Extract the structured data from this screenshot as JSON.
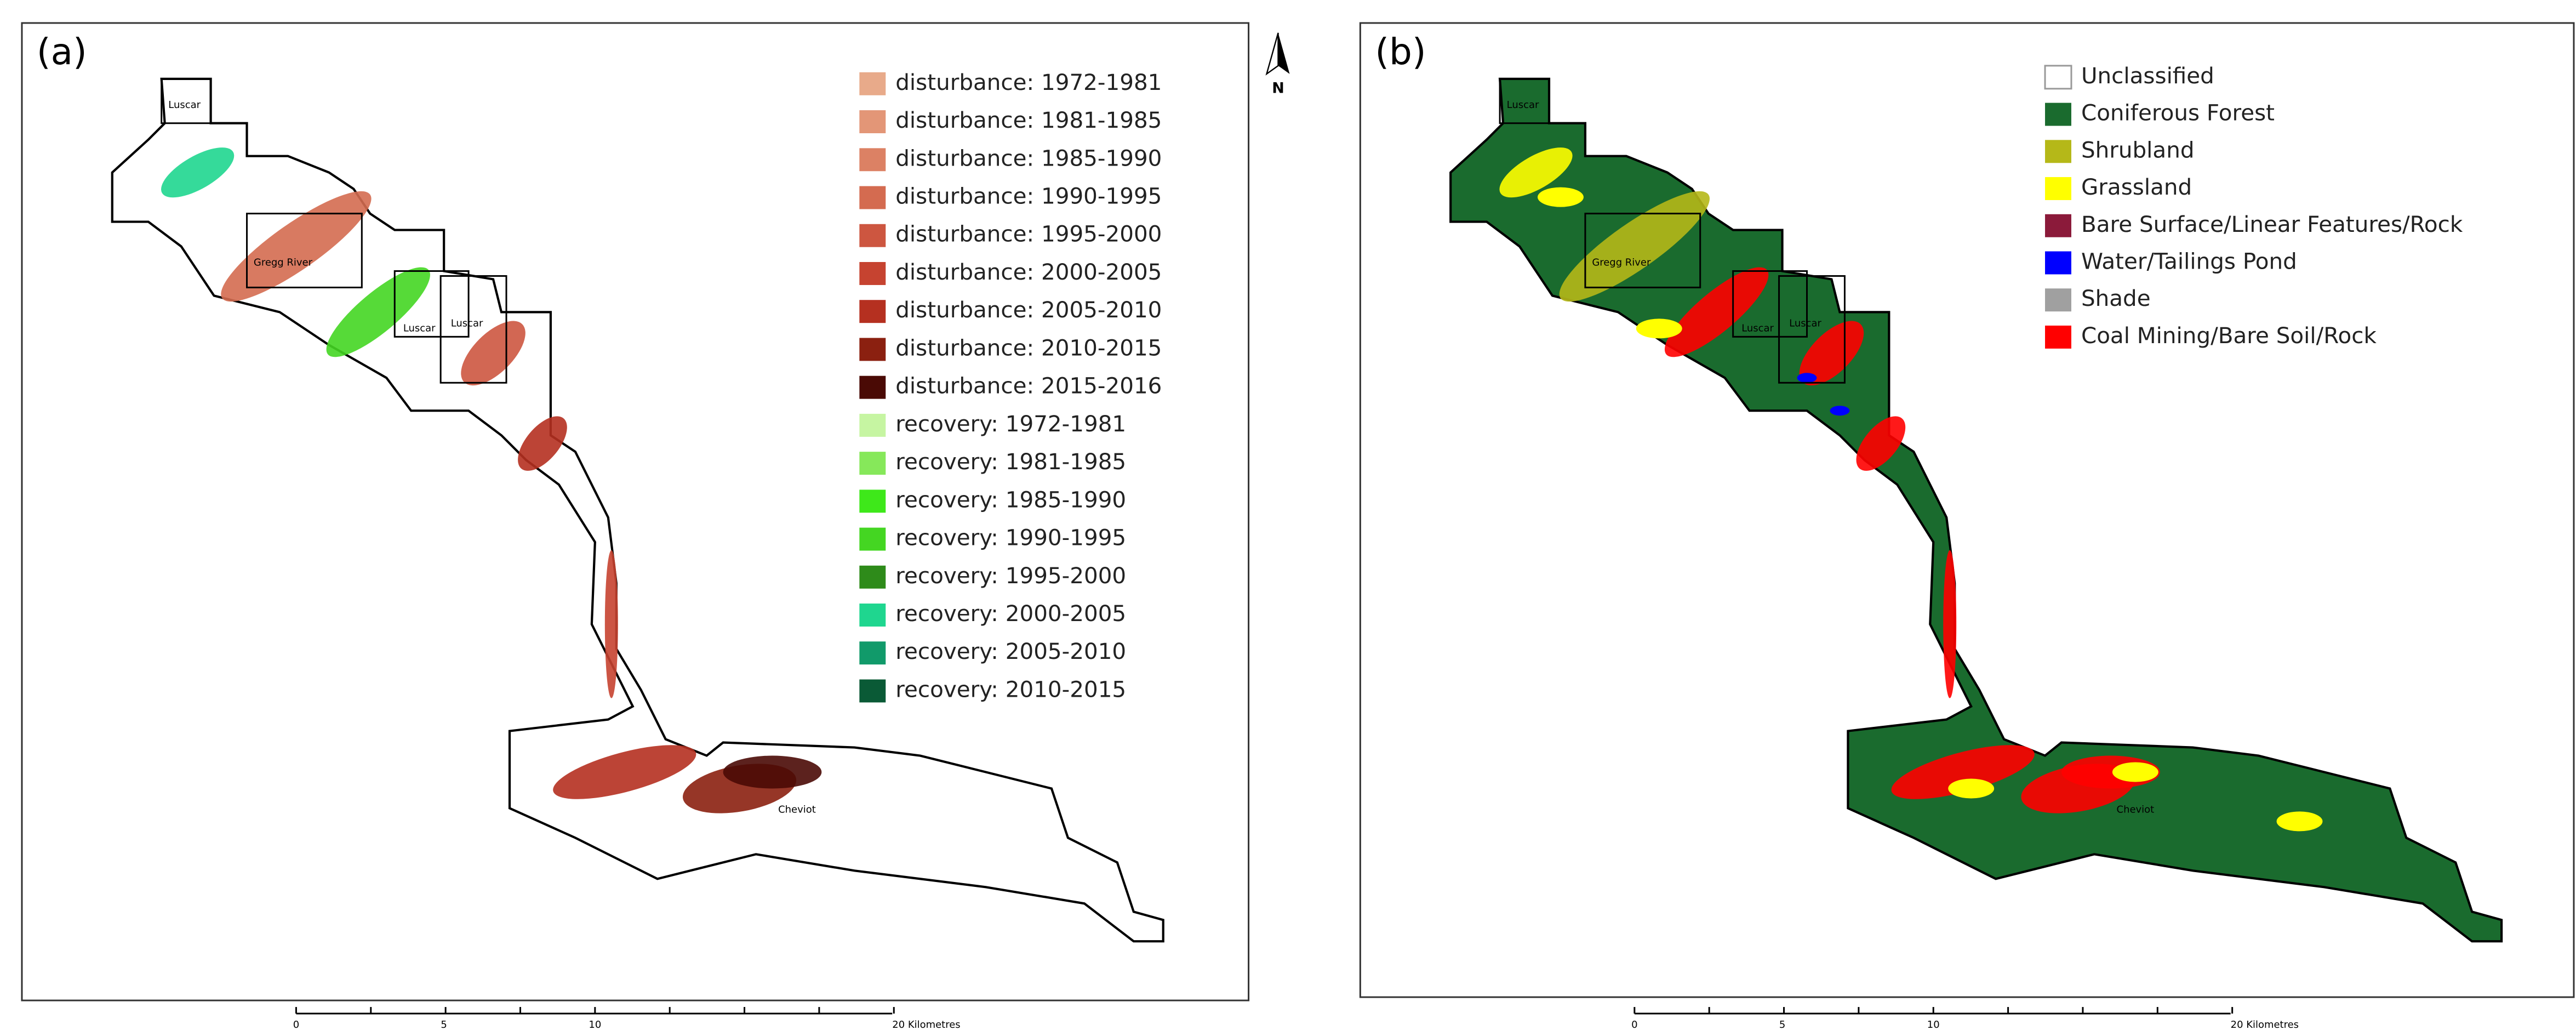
{
  "north_arrow": "N",
  "panels": [
    {
      "label": "(a)",
      "legend": [
        {
          "label": "disturbance: 1972-1981",
          "color": "#e8aa8a"
        },
        {
          "label": "disturbance: 1981-1985",
          "color": "#e39677"
        },
        {
          "label": "disturbance: 1985-1990",
          "color": "#dc8164"
        },
        {
          "label": "disturbance: 1990-1995",
          "color": "#d46b50"
        },
        {
          "label": "disturbance: 1995-2000",
          "color": "#cd5640"
        },
        {
          "label": "disturbance: 2000-2005",
          "color": "#c64330"
        },
        {
          "label": "disturbance: 2005-2010",
          "color": "#b53020"
        },
        {
          "label": "disturbance: 2010-2015",
          "color": "#8b2010"
        },
        {
          "label": "disturbance: 2015-2016",
          "color": "#4a0a05"
        },
        {
          "label": "recovery: 1972-1981",
          "color": "#c6f5a2"
        },
        {
          "label": "recovery: 1981-1985",
          "color": "#86e85a"
        },
        {
          "label": "recovery: 1985-1990",
          "color": "#3ee81a"
        },
        {
          "label": "recovery: 1990-1995",
          "color": "#44d622"
        },
        {
          "label": "recovery: 1995-2000",
          "color": "#2e8b1a"
        },
        {
          "label": "recovery: 2000-2005",
          "color": "#1fd68f"
        },
        {
          "label": "recovery: 2005-2010",
          "color": "#119a6a"
        },
        {
          "label": "recovery: 2010-2015",
          "color": "#0a5a36"
        }
      ],
      "places": [
        "Luscar",
        "Gregg River",
        "Luscar",
        "Luscar",
        "Cheviot"
      ],
      "scale_bar": [
        "0",
        "5",
        "10",
        "20 Kilometres"
      ]
    },
    {
      "label": "(b)",
      "legend": [
        {
          "label": "Unclassified",
          "color": "#ffffff"
        },
        {
          "label": "Coniferous Forest",
          "color": "#1a6b2e"
        },
        {
          "label": "Shrubland",
          "color": "#b5b818"
        },
        {
          "label": "Grassland",
          "color": "#ffff00"
        },
        {
          "label": "Bare Surface/Linear Features/Rock",
          "color": "#8b1a3a"
        },
        {
          "label": "Water/Tailings Pond",
          "color": "#0000ff"
        },
        {
          "label": "Shade",
          "color": "#a0a0a0"
        },
        {
          "label": "Coal Mining/Bare Soil/Rock",
          "color": "#ff0000"
        }
      ],
      "places": [
        "Luscar",
        "Gregg River",
        "Luscar",
        "Luscar",
        "Cheviot"
      ],
      "scale_bar": [
        "0",
        "5",
        "10",
        "20 Kilometres"
      ]
    }
  ]
}
